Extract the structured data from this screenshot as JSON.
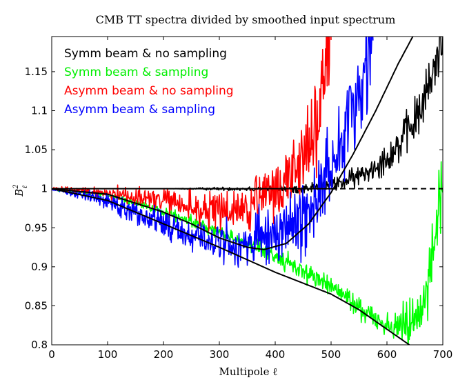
{
  "chart_data": {
    "type": "line",
    "title": "CMB TT spectra divided by smoothed input spectrum",
    "xlabel": "Multipole ℓ",
    "ylabel": "B",
    "ylabel_sup": "2",
    "ylabel_sub": "ℓ",
    "xlim": [
      0,
      700
    ],
    "ylim": [
      0.8,
      1.195
    ],
    "xticks": [
      0,
      100,
      200,
      300,
      400,
      500,
      600,
      700
    ],
    "yticks": [
      0.8,
      0.85,
      0.9,
      0.95,
      1,
      1.05,
      1.1,
      1.15
    ],
    "ytick_labels": [
      "0.8",
      "0.85",
      "0.9",
      "0.95",
      "1",
      "1.05",
      "1.1",
      "1.15"
    ],
    "legend_location": "top-left",
    "series": [
      {
        "name": "Symm beam & no sampling",
        "color": "#000000",
        "x": [
          0,
          100,
          200,
          300,
          400,
          450,
          500,
          530,
          560,
          580,
          600,
          620,
          640,
          660,
          680,
          700
        ],
        "y": [
          1.0,
          1.0,
          1.0,
          1.0,
          1.0,
          1.0,
          1.005,
          1.01,
          1.02,
          1.03,
          1.04,
          1.055,
          1.075,
          1.1,
          1.14,
          1.2
        ],
        "noise": [
          0,
          0,
          0,
          0.001,
          0.002,
          0.003,
          0.004,
          0.006,
          0.007,
          0.008,
          0.01,
          0.012,
          0.014,
          0.016,
          0.018,
          0.02
        ]
      },
      {
        "name": "Symm beam & sampling",
        "color": "#00ff00",
        "x": [
          0,
          100,
          200,
          300,
          350,
          400,
          450,
          500,
          550,
          600,
          620,
          640,
          660,
          680,
          690,
          700
        ],
        "y": [
          1.0,
          0.992,
          0.97,
          0.945,
          0.93,
          0.913,
          0.895,
          0.875,
          0.848,
          0.825,
          0.822,
          0.83,
          0.85,
          0.9,
          0.95,
          1.03
        ],
        "noise": [
          0.001,
          0.002,
          0.003,
          0.004,
          0.005,
          0.005,
          0.006,
          0.006,
          0.007,
          0.009,
          0.012,
          0.015,
          0.018,
          0.025,
          0.03,
          0.03
        ]
      },
      {
        "name": "Asymm beam & no sampling",
        "color": "#ff0000",
        "x": [
          0,
          100,
          150,
          200,
          250,
          300,
          350,
          400,
          430,
          460,
          480,
          500
        ],
        "y": [
          1.0,
          0.995,
          0.99,
          0.985,
          0.975,
          0.97,
          0.975,
          0.995,
          1.02,
          1.06,
          1.1,
          1.2
        ],
        "noise": [
          0.001,
          0.004,
          0.006,
          0.008,
          0.01,
          0.013,
          0.016,
          0.02,
          0.024,
          0.028,
          0.032,
          0.035
        ]
      },
      {
        "name": "Asymm beam & sampling",
        "color": "#0000ff",
        "x": [
          0,
          100,
          150,
          200,
          250,
          300,
          350,
          400,
          450,
          480,
          500,
          530,
          560,
          575
        ],
        "y": [
          1.0,
          0.985,
          0.97,
          0.955,
          0.94,
          0.93,
          0.928,
          0.94,
          0.965,
          0.995,
          1.03,
          1.09,
          1.15,
          1.2
        ],
        "noise": [
          0.001,
          0.005,
          0.007,
          0.009,
          0.011,
          0.013,
          0.016,
          0.02,
          0.024,
          0.027,
          0.03,
          0.033,
          0.036,
          0.038
        ]
      }
    ],
    "model_curves": [
      {
        "name": "theory-curve-upper",
        "color": "#000000",
        "x": [
          0,
          100,
          200,
          250,
          300,
          350,
          380,
          420,
          460,
          500,
          540,
          580,
          620,
          650
        ],
        "y": [
          1.0,
          0.993,
          0.97,
          0.955,
          0.937,
          0.925,
          0.922,
          0.93,
          0.955,
          0.995,
          1.045,
          1.1,
          1.16,
          1.2
        ]
      },
      {
        "name": "theory-curve-lower",
        "color": "#000000",
        "x": [
          0,
          100,
          200,
          300,
          400,
          500,
          550,
          600,
          640
        ],
        "y": [
          1.0,
          0.985,
          0.955,
          0.925,
          0.893,
          0.865,
          0.845,
          0.82,
          0.8
        ]
      }
    ],
    "reference_lines": [
      {
        "name": "unity-solid",
        "style": "solid",
        "color": "#000000",
        "x": [
          0,
          500
        ],
        "y": 1.0
      },
      {
        "name": "unity-dashed",
        "style": "dashed",
        "color": "#000000",
        "x": [
          500,
          700
        ],
        "y": 1.0
      }
    ]
  }
}
